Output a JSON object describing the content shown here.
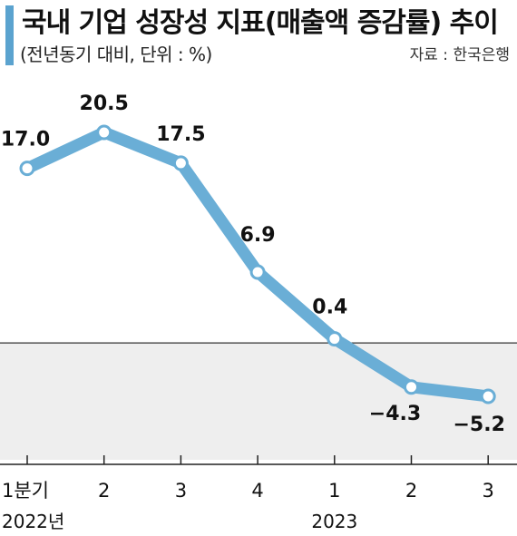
{
  "header": {
    "title": "국내 기업 성장성 지표(매출액 증감률) 추이",
    "subtitle": "(전년동기 대비, 단위 : %)",
    "source": "자료 : 한국은행"
  },
  "chart_data": {
    "type": "line",
    "title": "국내 기업 성장성 지표(매출액 증감률) 추이",
    "subtitle": "(전년동기 대비, 단위 : %)",
    "categories": [
      "1분기",
      "2",
      "3",
      "4",
      "1",
      "2",
      "3"
    ],
    "year_labels": [
      {
        "label": "2022년",
        "index": 0
      },
      {
        "label": "2023",
        "index": 4
      }
    ],
    "series": [
      {
        "values": [
          17.0,
          20.5,
          17.5,
          6.9,
          0.4,
          -4.3,
          -5.2
        ],
        "labels": [
          "17.0",
          "20.5",
          "17.5",
          "6.9",
          "0.4",
          "−4.3",
          "−5.2"
        ],
        "color": "#6aaed6"
      }
    ],
    "ylim": [
      -10.5,
      25
    ],
    "negative_region_color": "#eeeeee",
    "grid": false
  }
}
